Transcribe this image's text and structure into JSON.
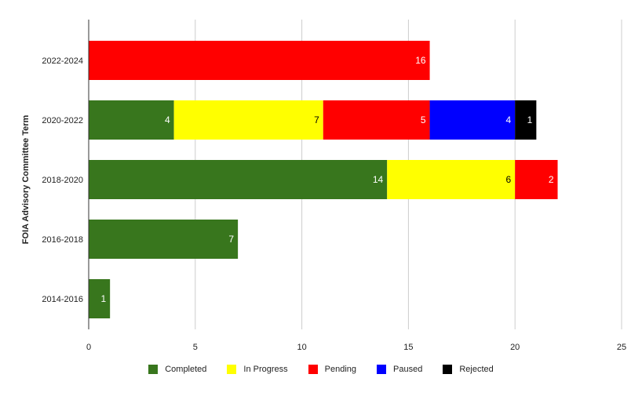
{
  "chart_data": {
    "type": "bar",
    "orientation": "horizontal",
    "stacked": true,
    "title": "",
    "xlabel": "",
    "ylabel": "FOIA Advisory Committee Term",
    "categories": [
      "2022-2024",
      "2020-2022",
      "2018-2020",
      "2016-2018",
      "2014-2016"
    ],
    "series": [
      {
        "name": "Completed",
        "color": "#38761d",
        "values": [
          0,
          4,
          14,
          7,
          1
        ]
      },
      {
        "name": "In Progress",
        "color": "#ffff00",
        "values": [
          0,
          7,
          6,
          0,
          0
        ]
      },
      {
        "name": "Pending",
        "color": "#ff0000",
        "values": [
          16,
          5,
          2,
          0,
          0
        ]
      },
      {
        "name": "Paused",
        "color": "#0000ff",
        "values": [
          0,
          4,
          0,
          0,
          0
        ]
      },
      {
        "name": "Rejected",
        "color": "#000000",
        "values": [
          0,
          1,
          0,
          0,
          0
        ]
      }
    ],
    "xlim": [
      0,
      25
    ],
    "xticks": [
      0,
      5,
      10,
      15,
      20,
      25
    ],
    "grid": true,
    "legend_position": "bottom",
    "data_labels": true
  },
  "legend": {
    "items": [
      {
        "label": "Completed",
        "color": "#38761d"
      },
      {
        "label": "In Progress",
        "color": "#ffff00"
      },
      {
        "label": "Pending",
        "color": "#ff0000"
      },
      {
        "label": "Paused",
        "color": "#0000ff"
      },
      {
        "label": "Rejected",
        "color": "#000000"
      }
    ]
  }
}
